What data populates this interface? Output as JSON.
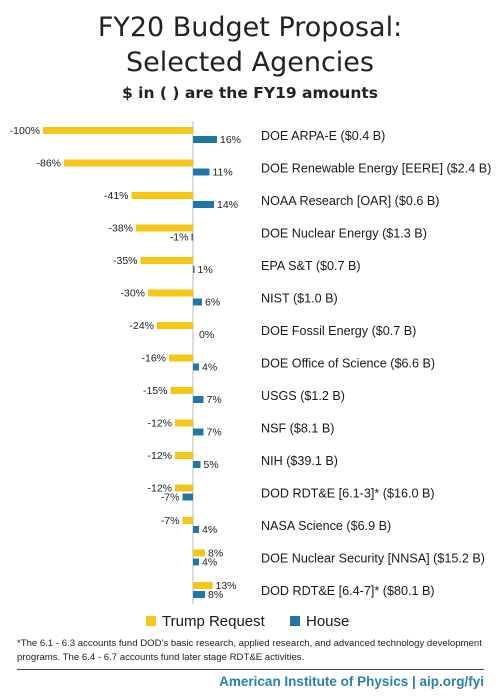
{
  "title_line1": "FY20 Budget Proposal:",
  "title_line2": "Selected Agencies",
  "subtitle": "$ in ( ) are the FY19 amounts",
  "chart_data": {
    "type": "bar",
    "orientation": "horizontal",
    "categories": [
      "DOE ARPA-E ($0.4 B)",
      "DOE Renewable Energy [EERE] ($2.4 B)",
      "NOAA Research [OAR] ($0.6 B)",
      "DOE Nuclear Energy ($1.3 B)",
      "EPA S&T ($0.7 B)",
      "NIST ($1.0 B)",
      "DOE Fossil Energy ($0.7 B)",
      "DOE Office of Science ($6.6 B)",
      "USGS ($1.2 B)",
      "NSF ($8.1 B)",
      "NIH ($39.1 B)",
      "DOD RDT&E [6.1-3]* ($16.0 B)",
      "NASA Science ($6.9 B)",
      "DOE Nuclear Security [NNSA] ($15.2 B)",
      "DOD RDT&E [6.4-7]* ($80.1 B)"
    ],
    "series": [
      {
        "name": "Trump Request",
        "color": "#F5C518",
        "values": [
          -100,
          -86,
          -41,
          -38,
          -35,
          -30,
          -24,
          -16,
          -15,
          -12,
          -12,
          -12,
          -7,
          8,
          13
        ],
        "labels": [
          "-100%",
          "-86%",
          "-41%",
          "-38%",
          "-35%",
          "-30%",
          "-24%",
          "-16%",
          "-15%",
          "-12%",
          "-12%",
          "-12%",
          "-7%",
          "8%",
          "13%"
        ]
      },
      {
        "name": "House",
        "color": "#1F77A8",
        "values": [
          16,
          11,
          14,
          -1,
          1,
          6,
          0,
          4,
          7,
          7,
          5,
          -7,
          4,
          4,
          8
        ],
        "labels": [
          "16%",
          "11%",
          "14%",
          "-1%",
          "1%",
          "6%",
          "0%",
          "4%",
          "7%",
          "7%",
          "5%",
          "-7%",
          "4%",
          "4%",
          "8%"
        ]
      }
    ],
    "legend_position": "bottom"
  },
  "footnote": "*The 6.1 - 6.3 accounts fund DOD’s basic research, applied research, and advanced technology development programs. The 6.4 - 6.7 accounts fund later stage RDT&E activities.",
  "credit": "American Institute of Physics | aip.org/fyi"
}
